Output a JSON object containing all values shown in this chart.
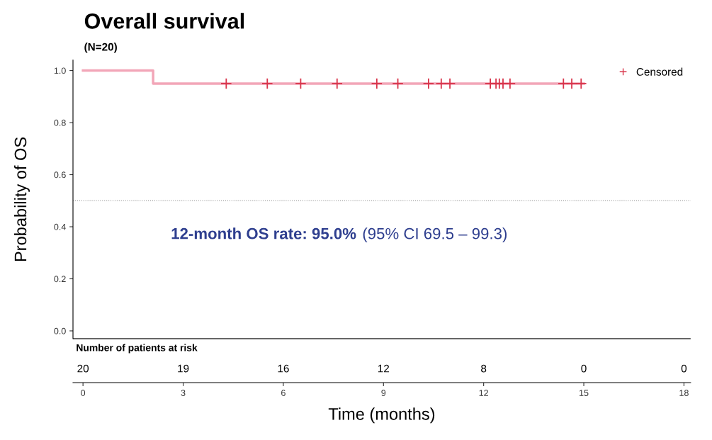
{
  "chart_data": {
    "type": "step",
    "title": "Overall survival",
    "subtitle": "(N=20)",
    "ylabel": "Probability of OS",
    "xlabel": "Time (months)",
    "xlim": [
      -0.3,
      18.2
    ],
    "xticks": [
      0,
      3,
      6,
      9,
      12,
      15,
      18
    ],
    "ylim": [
      -0.03,
      1.04
    ],
    "yticks": [
      {
        "value": 0,
        "label": "0.0"
      },
      0.2,
      0.4,
      0.6,
      0.8,
      {
        "value": 1,
        "label": "1.0"
      }
    ],
    "legend": "top right",
    "series": [
      {
        "color": "#f2a6b8",
        "x": [
          0,
          2.1,
          15.0
        ],
        "values": [
          1.0,
          0.95,
          0.95
        ]
      },
      {
        "type": "scatter",
        "name": "Censored",
        "color": "#d8344a",
        "marker": "cross",
        "x": [
          4.29,
          5.52,
          6.52,
          7.61,
          8.8,
          9.43,
          10.35,
          10.73,
          10.99,
          12.2,
          12.37,
          12.47,
          12.58,
          12.79,
          14.39,
          14.64,
          14.92
        ],
        "values": [
          0.95,
          0.95,
          0.95,
          0.95,
          0.95,
          0.95,
          0.95,
          0.95,
          0.95,
          0.95,
          0.95,
          0.95,
          0.95,
          0.95,
          0.95,
          0.95,
          0.95
        ]
      }
    ],
    "ref_lines": [
      {
        "axis": "y",
        "value": 0.5,
        "color": "#888888",
        "line_style": "dotted"
      }
    ],
    "annotations": [
      "12-month OS rate: 95.0%",
      "(95% CI 69.5 – 99.3)",
      "Number of patients at risk",
      "20",
      "19",
      "16",
      "12",
      "8",
      "0",
      "0"
    ]
  }
}
